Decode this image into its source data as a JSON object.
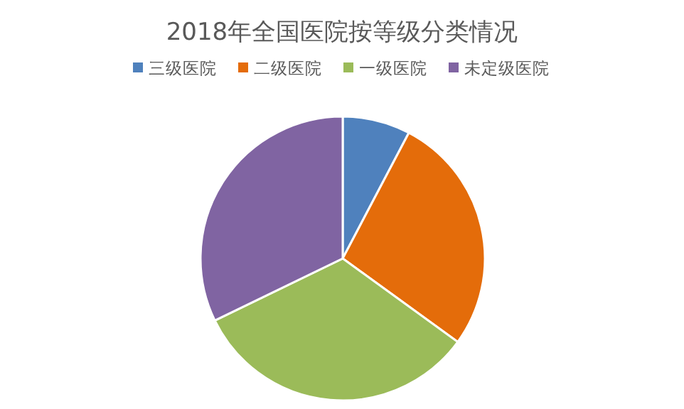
{
  "chart_data": {
    "type": "pie",
    "title": "2018年全国医院按等级分类情况",
    "categories": [
      "三级医院",
      "二级医院",
      "一级医院",
      "未定级医院"
    ],
    "values": [
      7.7,
      27.3,
      32.8,
      32.2
    ],
    "colors": [
      "#4f81bd",
      "#e46c0a",
      "#9bbb59",
      "#8064a2"
    ],
    "legend": "top"
  }
}
